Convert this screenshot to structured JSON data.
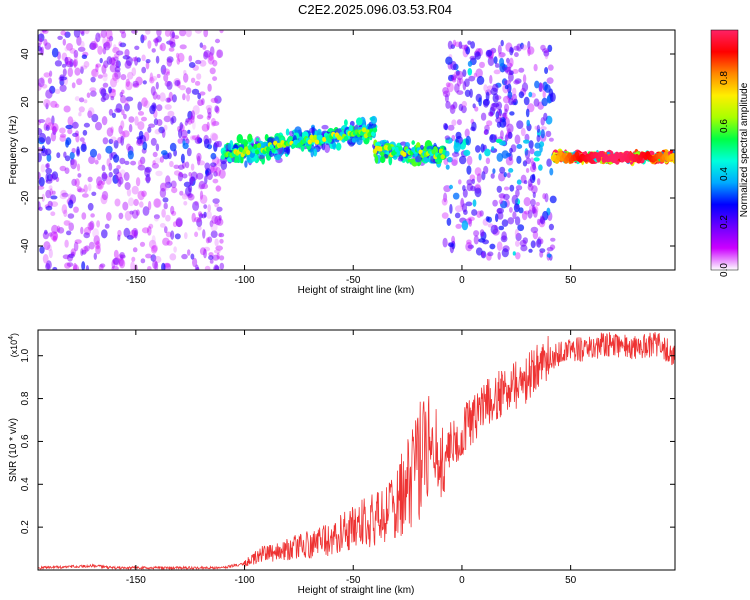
{
  "title": "C2E2.2025.096.03.53.R04",
  "chart_data": [
    {
      "type": "heatmap",
      "title": "C2E2.2025.096.03.53.R04",
      "xlabel": "Height of straight line (km)",
      "ylabel": "Frequency (Hz)",
      "xlim": [
        -195,
        98
      ],
      "ylim": [
        -50,
        50
      ],
      "x_ticks": [
        -150,
        -100,
        -50,
        0,
        50
      ],
      "y_ticks": [
        -40,
        -20,
        0,
        20,
        40
      ],
      "colorbar": {
        "label": "Normalized spectral amplitude",
        "range": [
          0,
          1
        ],
        "ticks": [
          0.0,
          0.2,
          0.4,
          0.6,
          0.8
        ],
        "colors": [
          "#ffffff",
          "#cc00ff",
          "#6a00ff",
          "#0000ff",
          "#00aaff",
          "#00ffdd",
          "#00ff44",
          "#aaff00",
          "#ffee00",
          "#ff8800",
          "#ff0000",
          "#ff2266"
        ]
      },
      "segments": [
        {
          "x_start": -195,
          "x_end": -110,
          "freq_center": 0,
          "freq_spread": 50,
          "amplitude": 0.2
        },
        {
          "x_start": -110,
          "x_end": -40,
          "freq_center_start": -2,
          "freq_center_end": 8,
          "freq_spread": 6,
          "amplitude": 0.45
        },
        {
          "x_start": -40,
          "x_end": -8,
          "freq_center_start": 0,
          "freq_center_end": -2,
          "freq_spread": 5,
          "amplitude": 0.5
        },
        {
          "x_start": -8,
          "x_end": 42,
          "freq_center": 0,
          "freq_spread": 45,
          "amplitude": 0.3
        },
        {
          "x_start": 42,
          "x_end": 98,
          "freq_center": -3,
          "freq_spread": 2,
          "amplitude": 0.95
        }
      ]
    },
    {
      "type": "line",
      "xlabel": "Height of straight line (km)",
      "ylabel": "SNR (10 * v/v)",
      "y_multiplier": "(x10",
      "y_multiplier_exp": "4",
      "xlim": [
        -195,
        98
      ],
      "ylim": [
        0,
        1.12
      ],
      "x_ticks": [
        -150,
        -100,
        -50,
        0,
        50
      ],
      "y_ticks": [
        0.2,
        0.4,
        0.6,
        0.8,
        1.0
      ],
      "series": [
        {
          "color": "#ee3333",
          "x": [
            -195,
            -180,
            -170,
            -160,
            -150,
            -140,
            -130,
            -120,
            -110,
            -105,
            -100,
            -95,
            -90,
            -85,
            -80,
            -75,
            -70,
            -65,
            -60,
            -55,
            -50,
            -45,
            -40,
            -35,
            -30,
            -27,
            -25,
            -22,
            -20,
            -18,
            -15,
            -13,
            -10,
            -7,
            -5,
            -2,
            0,
            5,
            10,
            15,
            20,
            25,
            30,
            35,
            40,
            45,
            50,
            55,
            60,
            65,
            70,
            75,
            80,
            85,
            90,
            95,
            98
          ],
          "y": [
            0.01,
            0.015,
            0.02,
            0.01,
            0.01,
            0.01,
            0.01,
            0.01,
            0.01,
            0.02,
            0.03,
            0.06,
            0.08,
            0.09,
            0.1,
            0.11,
            0.12,
            0.13,
            0.15,
            0.17,
            0.2,
            0.22,
            0.24,
            0.26,
            0.3,
            0.36,
            0.4,
            0.45,
            0.5,
            0.56,
            0.62,
            0.58,
            0.45,
            0.5,
            0.58,
            0.62,
            0.65,
            0.7,
            0.76,
            0.8,
            0.83,
            0.86,
            0.9,
            0.94,
            0.98,
            1.01,
            1.02,
            1.03,
            1.04,
            1.05,
            1.05,
            1.05,
            1.04,
            1.05,
            1.05,
            1.02,
            1.0
          ]
        }
      ]
    }
  ]
}
